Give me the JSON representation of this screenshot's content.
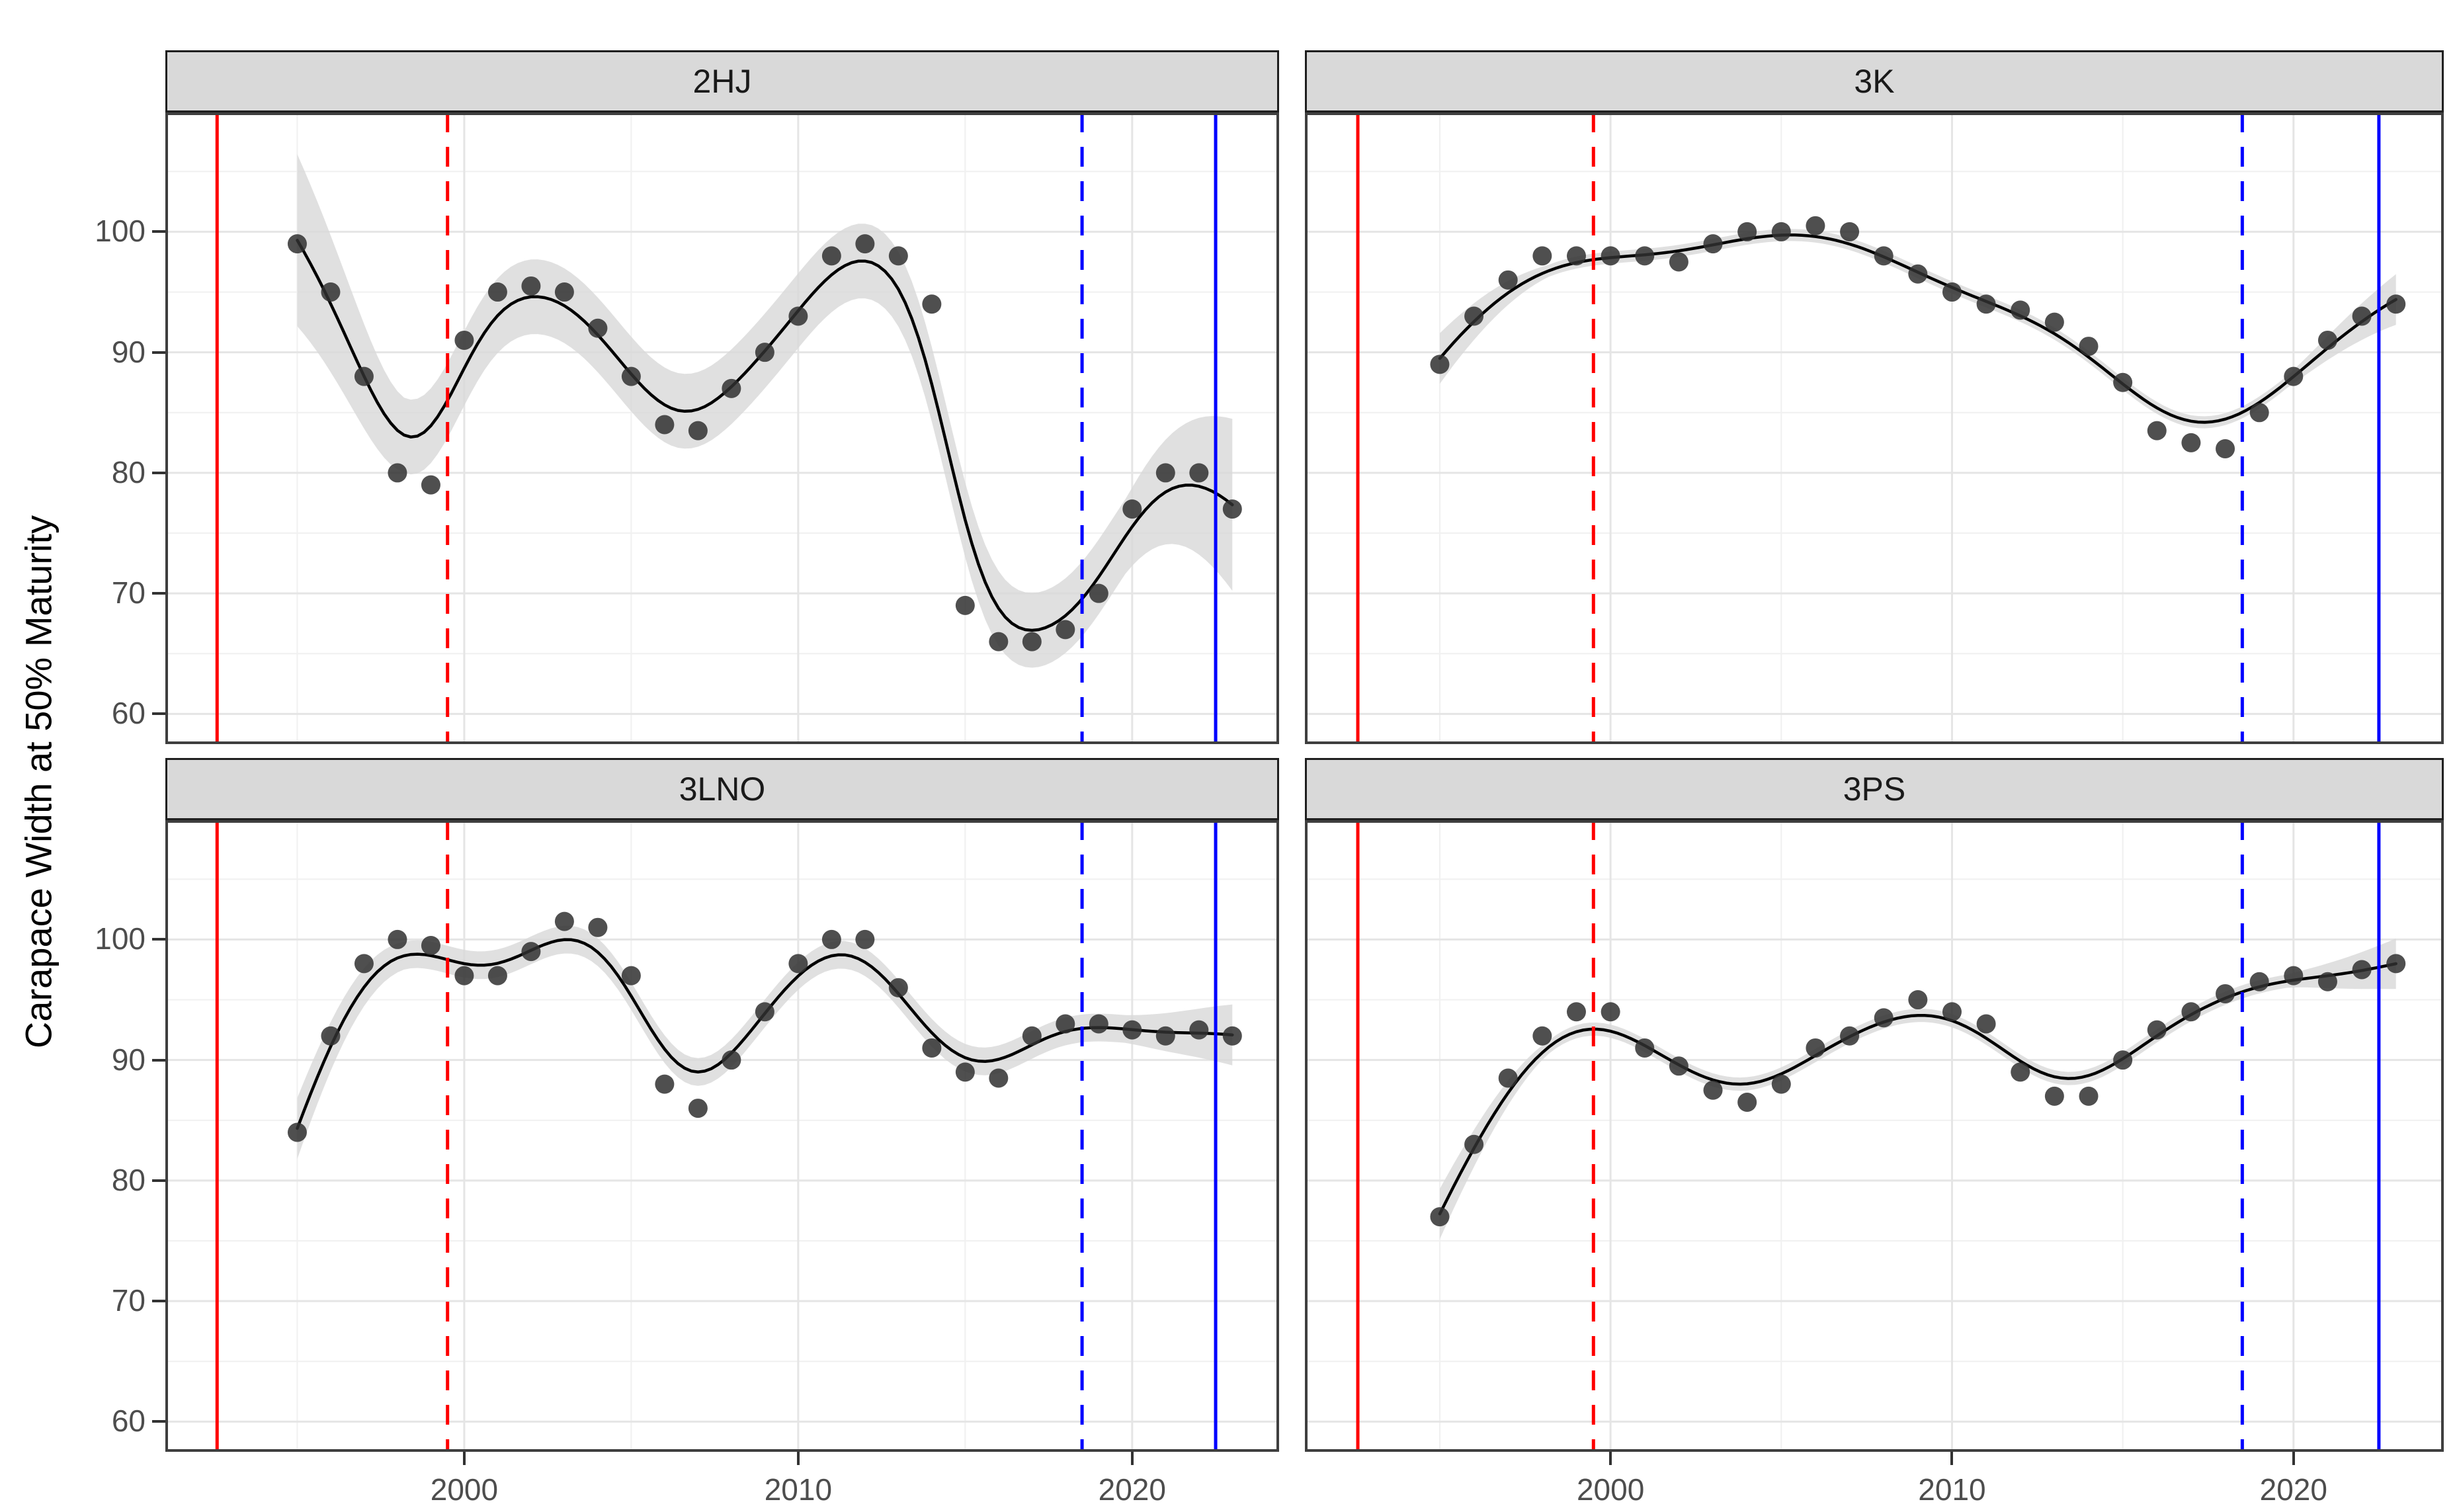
{
  "figure": {
    "y_axis_title": "Carapace Width at 50% Maturity",
    "background_color": "#ffffff"
  },
  "chart_data": {
    "type": "scatter",
    "smoother": "loess",
    "title": "",
    "xlabel": "",
    "ylabel": "Carapace Width at 50% Maturity",
    "x_years": [
      1995,
      1996,
      1997,
      1998,
      1999,
      2000,
      2001,
      2002,
      2003,
      2004,
      2005,
      2006,
      2007,
      2008,
      2009,
      2010,
      2011,
      2012,
      2013,
      2014,
      2015,
      2016,
      2017,
      2018,
      2019,
      2020,
      2021,
      2022,
      2023
    ],
    "x_ticks": [
      2000,
      2010,
      2020
    ],
    "y_ticks": [
      100,
      90,
      80,
      70,
      60
    ],
    "x_minor_gridlines": [
      1995,
      2005,
      2015
    ],
    "y_minor_gridlines": [
      105,
      95,
      85,
      75,
      65
    ],
    "x_domain": [
      1991.05,
      2024.4
    ],
    "y_domain": [
      57.5,
      109.9
    ],
    "grid_on": true,
    "legend_position": "none",
    "facets": [
      {
        "label": "2HJ",
        "values": [
          99,
          95,
          88,
          80,
          79,
          91,
          95,
          95.5,
          95,
          92,
          88,
          84,
          83.5,
          87,
          90,
          93,
          98,
          99,
          98,
          94,
          69,
          66,
          66,
          67,
          70,
          77,
          80,
          80,
          77
        ],
        "ribbon": {
          "base": 3.1,
          "end_flare": 1.3
        },
        "bandwidth": 1.05
      },
      {
        "label": "3K",
        "values": [
          89,
          93,
          96,
          98,
          98,
          98,
          98,
          97.5,
          99,
          100,
          100,
          100.5,
          100,
          98,
          96.5,
          95,
          94,
          93.5,
          92.5,
          90.5,
          87.5,
          83.5,
          82.5,
          82,
          85,
          88,
          91,
          93,
          94
        ],
        "ribbon": {
          "base": 0.5,
          "end_flare": 3.2
        },
        "bandwidth": 1.6
      },
      {
        "label": "3LNO",
        "values": [
          84,
          92,
          98,
          100,
          99.5,
          97,
          97,
          99,
          101.5,
          101,
          97,
          88,
          86,
          90,
          94,
          98,
          100,
          100,
          96,
          91,
          89,
          88.5,
          92,
          93,
          93,
          92.5,
          92,
          92.5,
          92
        ],
        "ribbon": {
          "base": 1.15,
          "end_flare": 1.2
        },
        "bandwidth": 1.1
      },
      {
        "label": "3PS",
        "values": [
          77,
          83,
          88.5,
          92,
          94,
          94,
          91,
          89.5,
          87.5,
          86.5,
          88,
          91,
          92,
          93.5,
          95,
          94,
          93,
          89,
          87,
          87,
          90,
          92.5,
          94,
          95.5,
          96.5,
          97,
          96.5,
          97.5,
          98
        ],
        "ribbon": {
          "base": 0.55,
          "end_flare": 2.8
        },
        "bandwidth": 1.3
      }
    ],
    "reference_lines": [
      {
        "name": "red-solid-line",
        "year": 1992.6,
        "color": "#FF0000",
        "style": "solid"
      },
      {
        "name": "red-dashed-line",
        "year": 1999.5,
        "color": "#FF0000",
        "style": "dashed"
      },
      {
        "name": "blue-dashed-line",
        "year": 2018.5,
        "color": "#0000FF",
        "style": "dashed"
      },
      {
        "name": "blue-solid-line",
        "year": 2022.5,
        "color": "#0000FF",
        "style": "solid"
      }
    ],
    "colors": {
      "point": "#303030",
      "smooth_line": "#000000",
      "ribbon": "#d8d8d8",
      "grid_major": "#e5e5e5",
      "grid_minor": "#f1f1f1",
      "panel_border": "#3f3f3f",
      "strip_background": "#d9d9d9",
      "strip_border": "#1f1f1f",
      "tick_label": "#4d4d4d",
      "red_reference": "#FF0000",
      "blue_reference": "#0000FF"
    }
  }
}
